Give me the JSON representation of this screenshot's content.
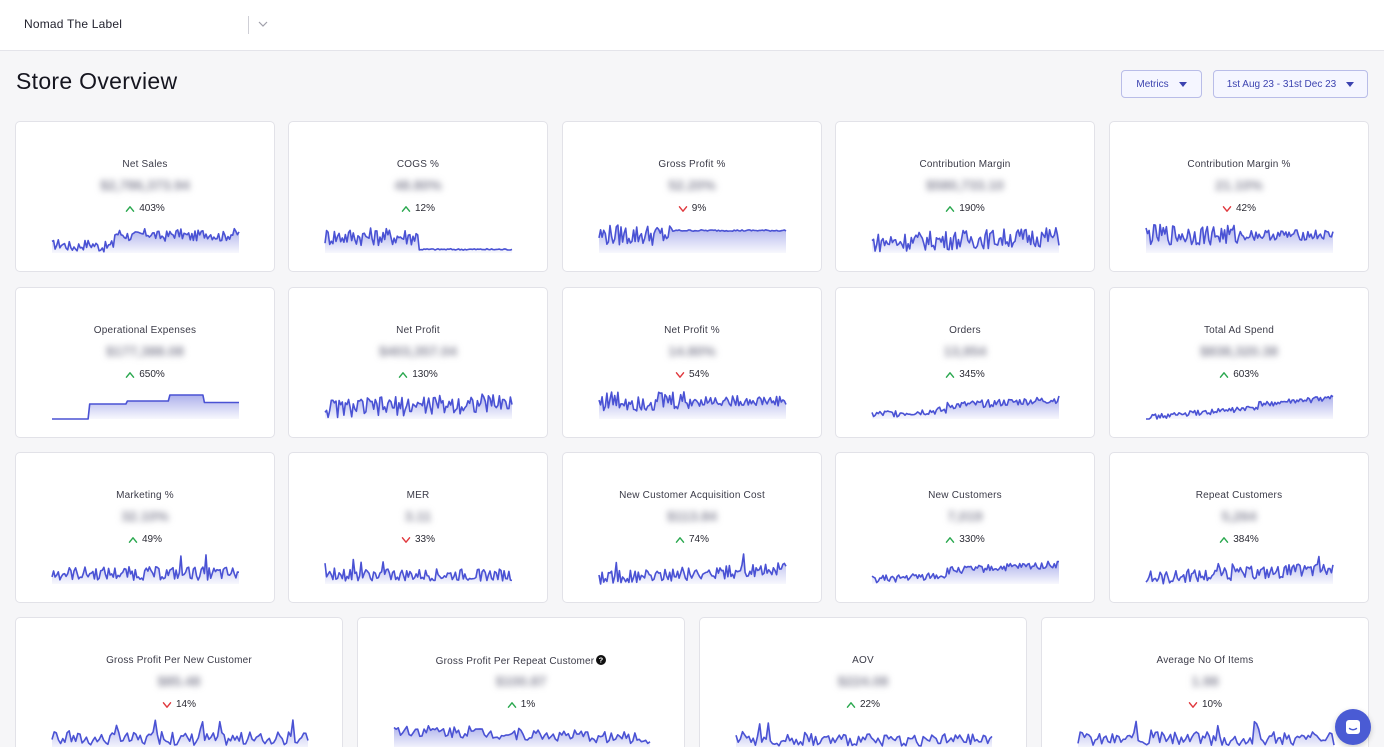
{
  "header": {
    "store_name": "Nomad The Label"
  },
  "page": {
    "title": "Store Overview",
    "metrics_button": "Metrics",
    "date_range": "1st Aug 23 - 31st Dec 23"
  },
  "colors": {
    "accent": "#4a52d4",
    "up": "#2aa84f",
    "down": "#e0393e"
  },
  "cards": [
    {
      "title": "Net Sales",
      "value": "$2,786,373.94",
      "change": "403%",
      "dir": "up",
      "shape": "rising"
    },
    {
      "title": "COGS %",
      "value": "48.80%",
      "change": "12%",
      "dir": "up",
      "shape": "cogs"
    },
    {
      "title": "Gross Profit %",
      "value": "52.20%",
      "change": "9%",
      "dir": "down",
      "shape": "plateau"
    },
    {
      "title": "Contribution Margin",
      "value": "$580,733.10",
      "change": "190%",
      "dir": "up",
      "shape": "volatile"
    },
    {
      "title": "Contribution Margin %",
      "value": "21.10%",
      "change": "42%",
      "dir": "down",
      "shape": "plateau2"
    },
    {
      "title": "Operational Expenses",
      "value": "$177,388.08",
      "change": "650%",
      "dir": "up",
      "shape": "steps"
    },
    {
      "title": "Net Profit",
      "value": "$403,357.04",
      "change": "130%",
      "dir": "up",
      "shape": "volatile"
    },
    {
      "title": "Net Profit %",
      "value": "14.80%",
      "change": "54%",
      "dir": "down",
      "shape": "plateau2"
    },
    {
      "title": "Orders",
      "value": "13,954",
      "change": "345%",
      "dir": "up",
      "shape": "rising2"
    },
    {
      "title": "Total Ad Spend",
      "value": "$838,320.38",
      "change": "603%",
      "dir": "up",
      "shape": "smooth_rise"
    },
    {
      "title": "Marketing %",
      "value": "32.10%",
      "change": "49%",
      "dir": "up",
      "shape": "flat_noisy"
    },
    {
      "title": "MER",
      "value": "3.11",
      "change": "33%",
      "dir": "down",
      "shape": "flat_noisy2"
    },
    {
      "title": "New Customer Acquisition Cost",
      "value": "$113.84",
      "change": "74%",
      "dir": "up",
      "shape": "rising_spike"
    },
    {
      "title": "New Customers",
      "value": "7,019",
      "change": "330%",
      "dir": "up",
      "shape": "rising2"
    },
    {
      "title": "Repeat Customers",
      "value": "5,264",
      "change": "384%",
      "dir": "up",
      "shape": "rising_spike"
    },
    {
      "title": "Gross Profit Per New Customer",
      "value": "$85.48",
      "change": "14%",
      "dir": "down",
      "shape": "flat_noisy",
      "wide": true
    },
    {
      "title": "Gross Profit Per Repeat Customer",
      "value": "$100.87",
      "change": "1%",
      "dir": "up",
      "shape": "falling",
      "wide": true,
      "help": true
    },
    {
      "title": "AOV",
      "value": "$224.08",
      "change": "22%",
      "dir": "up",
      "shape": "flat_noisy2",
      "wide": true
    },
    {
      "title": "Average No Of Items",
      "value": "1.98",
      "change": "10%",
      "dir": "down",
      "shape": "flat_noisy",
      "wide": true
    }
  ]
}
